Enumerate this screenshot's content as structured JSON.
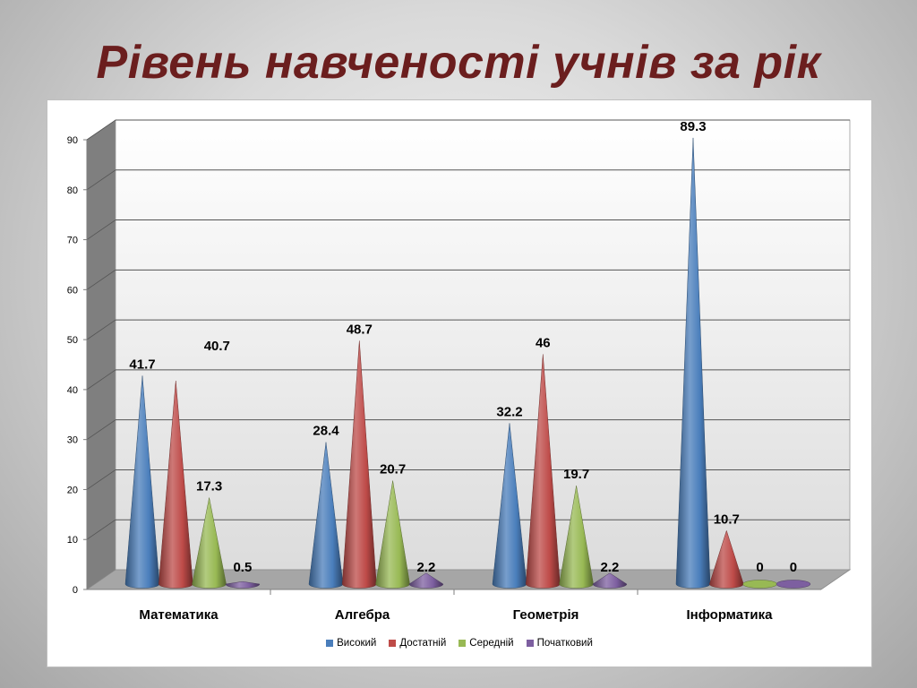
{
  "slide": {
    "title": "Рівень навченості учнів за рік"
  },
  "chart_data": {
    "type": "bar",
    "shape": "cone",
    "title": "",
    "xlabel": "",
    "ylabel": "",
    "ylim": [
      0,
      90
    ],
    "yticks": [
      0,
      10,
      20,
      30,
      40,
      50,
      60,
      70,
      80,
      90
    ],
    "grid": true,
    "legend_position": "bottom",
    "categories": [
      "Математика",
      "Алгебра",
      "Геометрія",
      "Інформатика"
    ],
    "series": [
      {
        "name": "Високий",
        "color": "#4a7ebb",
        "values": [
          41.7,
          28.4,
          32.2,
          89.3
        ]
      },
      {
        "name": "Достатній",
        "color": "#be4b48",
        "values": [
          40.7,
          48.7,
          46,
          10.7
        ]
      },
      {
        "name": "Середній",
        "color": "#98b954",
        "values": [
          17.3,
          20.7,
          19.7,
          0
        ]
      },
      {
        "name": "Початковий",
        "color": "#7d5fa0",
        "values": [
          0.5,
          2.2,
          2.2,
          0
        ]
      }
    ],
    "data_labels": [
      [
        "41.7",
        "28.4",
        "32.2",
        "89.3"
      ],
      [
        "40.7",
        "48.7",
        "46",
        "10.7"
      ],
      [
        "17.3",
        "20.7",
        "19.7",
        "0"
      ],
      [
        "0.5",
        "2.2",
        "2.2",
        "0"
      ]
    ]
  }
}
